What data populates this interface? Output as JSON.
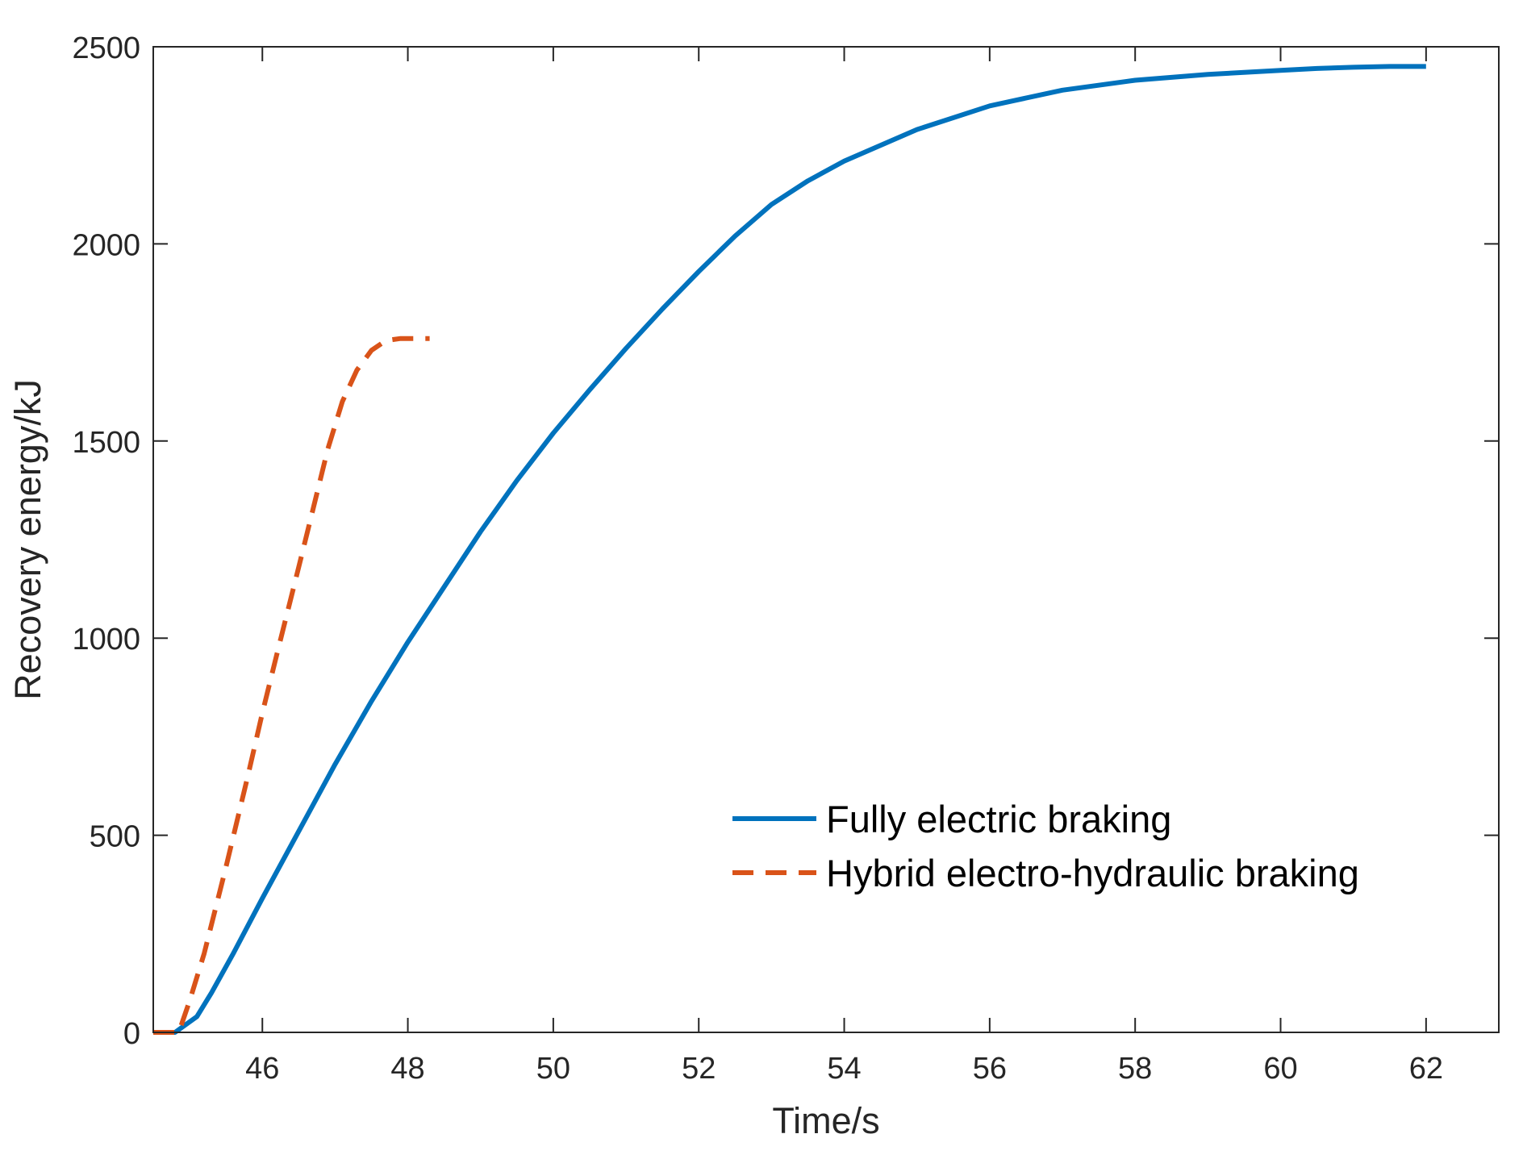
{
  "chart_data": {
    "type": "line",
    "xlabel": "Time/s",
    "ylabel": "Recovery energy/kJ",
    "xlim": [
      44.5,
      63
    ],
    "ylim": [
      0,
      2500
    ],
    "x_ticks": [
      46,
      48,
      50,
      52,
      54,
      56,
      58,
      60,
      62
    ],
    "x_tick_labels": [
      "46",
      "48",
      "50",
      "52",
      "54",
      "56",
      "58",
      "60",
      "62"
    ],
    "y_ticks": [
      0,
      500,
      1000,
      1500,
      2000,
      2500
    ],
    "y_tick_labels": [
      "0",
      "500",
      "1000",
      "1500",
      "2000",
      "2500"
    ],
    "grid": false,
    "box": true,
    "legend_position": "lower-right",
    "series": [
      {
        "name": "Fully electric braking",
        "color": "#0072BD",
        "style": "solid",
        "x": [
          44.5,
          44.8,
          45.1,
          45.3,
          45.6,
          46.0,
          46.5,
          47.0,
          47.5,
          48.0,
          48.5,
          49.0,
          49.5,
          50.0,
          50.5,
          51.0,
          51.5,
          52.0,
          52.5,
          53.0,
          53.5,
          54.0,
          55.0,
          56.0,
          57.0,
          58.0,
          59.0,
          60.0,
          60.5,
          61.0,
          61.5,
          62.0
        ],
        "values": [
          0,
          0,
          40,
          100,
          200,
          340,
          510,
          680,
          840,
          990,
          1130,
          1270,
          1400,
          1520,
          1630,
          1735,
          1835,
          1930,
          2020,
          2100,
          2160,
          2210,
          2290,
          2350,
          2390,
          2415,
          2430,
          2440,
          2445,
          2448,
          2450,
          2450
        ]
      },
      {
        "name": "Hybrid electro-hydraulic braking",
        "color": "#D95319",
        "style": "dashed",
        "x": [
          44.5,
          44.85,
          45.0,
          45.2,
          45.5,
          45.8,
          46.0,
          46.2,
          46.5,
          46.7,
          46.9,
          47.1,
          47.3,
          47.5,
          47.7,
          47.9,
          48.1,
          48.3
        ],
        "values": [
          0,
          0,
          80,
          200,
          420,
          650,
          810,
          960,
          1180,
          1330,
          1480,
          1600,
          1680,
          1730,
          1755,
          1760,
          1760,
          1760
        ]
      }
    ]
  },
  "colors": {
    "axis": "#262626",
    "background": "#ffffff"
  }
}
